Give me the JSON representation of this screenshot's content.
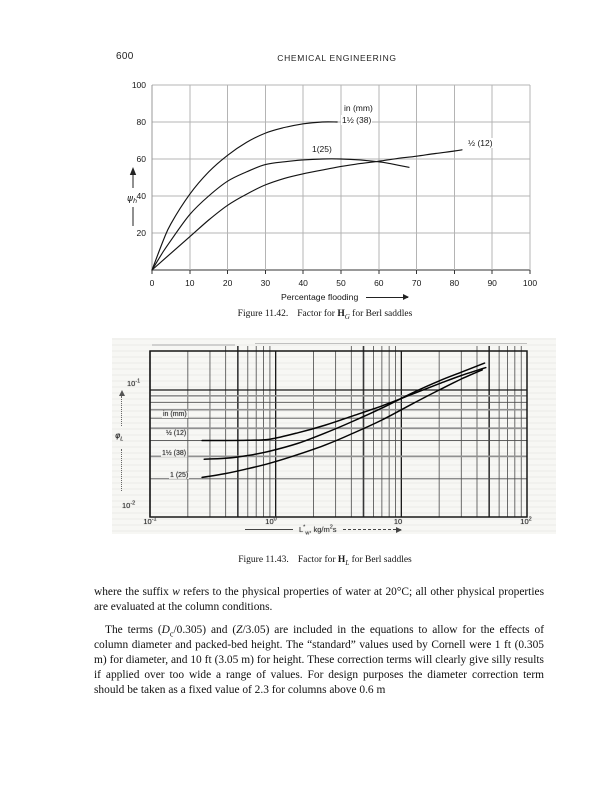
{
  "page": {
    "number": "600",
    "running_head": "CHEMICAL ENGINEERING"
  },
  "figure_1142": {
    "caption_label": "Figure 11.42.",
    "caption_pre": "Factor for ",
    "caption_sym": "H",
    "caption_sym_sub": "G",
    "caption_post": " for Berl saddles"
  },
  "figure_1143": {
    "caption_label": "Figure 11.43.",
    "caption_pre": "Factor for ",
    "caption_sym": "H",
    "caption_sym_sub": "L",
    "caption_post": " for Berl saddles",
    "yaxis_sym": "φ",
    "yaxis_sub": "L",
    "ytick_top": {
      "base": "10",
      "exp": "-1"
    },
    "ytick_bottom": {
      "base": "10",
      "exp": "-2"
    },
    "xtick_labels": [
      {
        "base": "10",
        "exp": "-1"
      },
      {
        "base": "10",
        "exp": "0"
      },
      {
        "base": "10",
        "exp": ""
      },
      {
        "base": "10",
        "exp": "2"
      }
    ],
    "xaxis_sym": "L",
    "xaxis_sym_sup": "*",
    "xaxis_sym_sub": "w",
    "xaxis_units_a": ", kg/m",
    "xaxis_units_sup": "2",
    "xaxis_units_b": "s"
  },
  "chart_data": [
    {
      "type": "line",
      "title": "Figure 11.42. Factor for HG for Berl saddles",
      "xlabel": "Percentage flooding",
      "ylabel": "ψh",
      "ylabel_sym": "ψ",
      "ylabel_sub": "h",
      "annotation": "in (mm)",
      "xlim": [
        0,
        100
      ],
      "ylim": [
        0,
        100
      ],
      "xticks": [
        0,
        10,
        20,
        30,
        40,
        50,
        60,
        70,
        80,
        90,
        100
      ],
      "yticks": [
        20,
        40,
        60,
        80,
        100
      ],
      "grid": true,
      "legend_position": "inline",
      "series": [
        {
          "name": "1½ (38)",
          "points": [
            [
              0,
              0
            ],
            [
              3,
              16
            ],
            [
              5,
              25
            ],
            [
              10,
              41
            ],
            [
              15,
              53
            ],
            [
              20,
              62
            ],
            [
              25,
              69
            ],
            [
              30,
              74
            ],
            [
              35,
              77
            ],
            [
              40,
              79
            ],
            [
              45,
              80
            ],
            [
              49,
              80
            ]
          ]
        },
        {
          "name": "1(25)",
          "points": [
            [
              0,
              0
            ],
            [
              3,
              10
            ],
            [
              5,
              16
            ],
            [
              10,
              30
            ],
            [
              15,
              40
            ],
            [
              20,
              48
            ],
            [
              25,
              53
            ],
            [
              30,
              57
            ],
            [
              35,
              58.5
            ],
            [
              40,
              59.5
            ],
            [
              45,
              60
            ],
            [
              50,
              60
            ],
            [
              55,
              59.5
            ],
            [
              60,
              58.5
            ],
            [
              63,
              57.5
            ],
            [
              68,
              55.5
            ]
          ]
        },
        {
          "name": "½ (12)",
          "points": [
            [
              0,
              0
            ],
            [
              5,
              9
            ],
            [
              10,
              18
            ],
            [
              15,
              27
            ],
            [
              20,
              35
            ],
            [
              25,
              41
            ],
            [
              30,
              46
            ],
            [
              35,
              49.5
            ],
            [
              40,
              52
            ],
            [
              45,
              54
            ],
            [
              50,
              56
            ],
            [
              55,
              57.5
            ],
            [
              60,
              58.8
            ],
            [
              65,
              60.3
            ],
            [
              70,
              61.5
            ],
            [
              75,
              63
            ],
            [
              80,
              64.3
            ],
            [
              82,
              65
            ]
          ]
        }
      ]
    },
    {
      "type": "line",
      "scale": "log-log",
      "title": "Figure 11.43. Factor for HL for Berl saddles",
      "xlabel": "L*w, kg/m²s",
      "ylabel": "φL",
      "annotation": "in (mm)",
      "xlim": [
        0.1,
        100
      ],
      "ylim": [
        0.01,
        0.2
      ],
      "xticks": [
        0.1,
        1,
        10,
        100
      ],
      "yticks": [
        0.01,
        0.1
      ],
      "grid": true,
      "series": [
        {
          "name": "½ (12)",
          "points": [
            [
              0.26,
              0.04
            ],
            [
              0.4,
              0.04
            ],
            [
              0.6,
              0.0402
            ],
            [
              0.9,
              0.041
            ],
            [
              1.5,
              0.046
            ],
            [
              2.5,
              0.053
            ],
            [
              4,
              0.062
            ],
            [
              7,
              0.075
            ],
            [
              12,
              0.092
            ],
            [
              20,
              0.112
            ],
            [
              30,
              0.13
            ],
            [
              47,
              0.15
            ]
          ]
        },
        {
          "name": "1½ (38)",
          "points": [
            [
              0.27,
              0.0285
            ],
            [
              0.4,
              0.029
            ],
            [
              0.6,
              0.0305
            ],
            [
              0.9,
              0.033
            ],
            [
              1.5,
              0.038
            ],
            [
              2.5,
              0.046
            ],
            [
              4,
              0.056
            ],
            [
              7,
              0.072
            ],
            [
              12,
              0.094
            ],
            [
              20,
              0.118
            ],
            [
              30,
              0.138
            ],
            [
              46,
              0.163
            ]
          ]
        },
        {
          "name": "1 (25)",
          "points": [
            [
              0.26,
              0.0205
            ],
            [
              0.4,
              0.022
            ],
            [
              0.6,
              0.024
            ],
            [
              0.9,
              0.0265
            ],
            [
              1.5,
              0.031
            ],
            [
              2.5,
              0.037
            ],
            [
              4,
              0.045
            ],
            [
              7,
              0.058
            ],
            [
              12,
              0.077
            ],
            [
              20,
              0.1
            ],
            [
              30,
              0.122
            ],
            [
              44,
              0.144
            ]
          ]
        }
      ]
    }
  ],
  "body": {
    "p1_a": "where the suffix ",
    "p1_em": "w",
    "p1_b": " refers to the physical properties of water at 20°C; all other physical properties are evaluated at the column conditions.",
    "p2_a": "The terms (",
    "p2_D": "D",
    "p2_Dsub": "c",
    "p2_b": "/0.305) and (",
    "p2_Z": "Z",
    "p2_c": "/3.05) are included in the equations to allow for the effects of column diameter and packed-bed height. The “standard” values used by Cornell were 1 ft (0.305 m) for diameter, and 10 ft (3.05 m) for height. These correction terms will clearly give silly results if applied over too wide a range of values. For design purposes the diameter correction term should be taken as a fixed value of 2.3 for columns above 0.6 m"
  }
}
